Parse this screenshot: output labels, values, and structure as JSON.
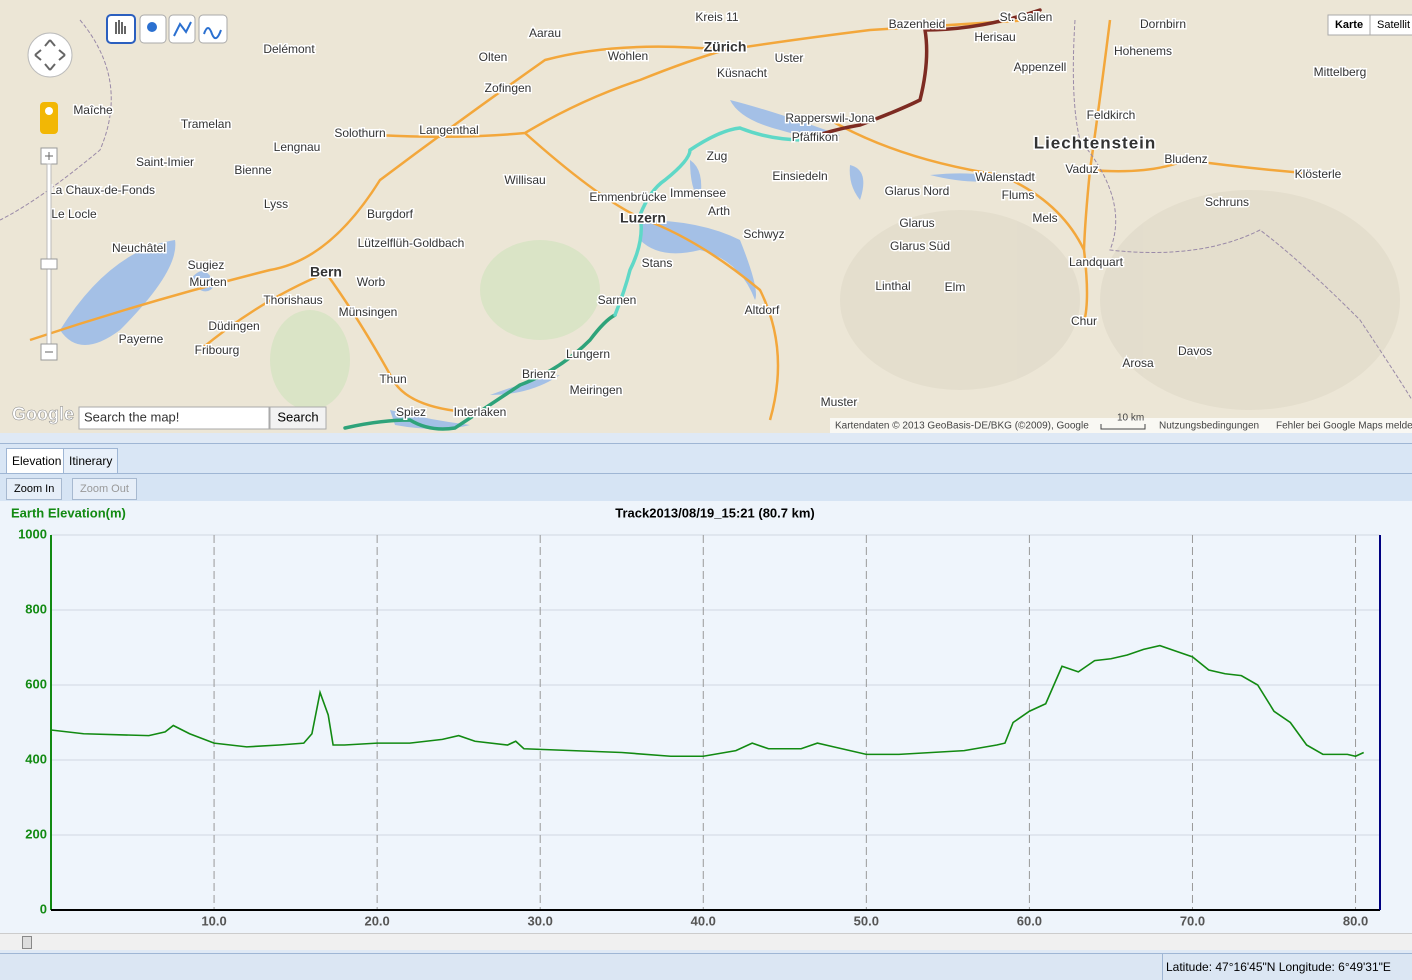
{
  "map": {
    "map_types": [
      "Karte",
      "Satellit"
    ],
    "search_placeholder": "Search the map!",
    "search_button": "Search",
    "logo": "Google",
    "scale": "10 km",
    "attribution": "Kartendaten © 2013 GeoBasis-DE/BKG (©2009), Google",
    "terms": "Nutzungsbedingungen",
    "report": "Fehler bei Google Maps melden",
    "places": [
      "Zürich",
      "Aarau",
      "Olten",
      "Zofingen",
      "Solothurn",
      "Langenthal",
      "Bienne",
      "Bern",
      "Thun",
      "Spiez",
      "Interlaken",
      "Luzern",
      "Zug",
      "Sarnen",
      "Stans",
      "Schwyz",
      "Einsiedeln",
      "Rapperswil-Jona",
      "Pfäffikon",
      "Uster",
      "Küsnacht",
      "Wohlen",
      "Willisau",
      "Burgdorf",
      "Fribourg",
      "Neuchâtel",
      "La Chaux-de-Fonds",
      "Delémont",
      "St. Gallen",
      "Herisau",
      "Appenzell",
      "Liechtenstein",
      "Vaduz",
      "Feldkirch",
      "Chur",
      "Davos",
      "Glarus",
      "Altdorf",
      "Meiringen",
      "Brienz",
      "Lungern",
      "Münsingen",
      "Murten",
      "Payerne",
      "Dornbirn",
      "Bludenz",
      "Landquart",
      "Arosa",
      "Hohenems",
      "Mittelberg",
      "Thorishaus",
      "Worb",
      "Lyss",
      "Maîche",
      "Tramelan",
      "Lengnau",
      "Saint-Imier",
      "Le Locle",
      "Düdingen",
      "Emmenbrücke",
      "Immensee",
      "Arth",
      "Walenstadt",
      "Flums",
      "Mels",
      "Linthal",
      "Elm",
      "Glarus Nord",
      "Glarus Süd",
      "Schruns",
      "Klösterle",
      "Muster",
      "Bazenheid",
      "Kreis 11",
      "Lützelflüh-Goldbach",
      "Sugiez",
      "Mittelberg"
    ]
  },
  "tabs": [
    "Elevation",
    "Itinerary"
  ],
  "buttons": [
    "Zoom In",
    "Zoom Out"
  ],
  "chart_data": {
    "type": "line",
    "title": "Track2013/08/19_15:21 (80.7 km)",
    "y_label": "Earth Elevation(m)",
    "color": "#128a12",
    "x": [
      0,
      2,
      6,
      7,
      7.5,
      8.5,
      10,
      12,
      14,
      15.5,
      16,
      16.5,
      17,
      17.3,
      18,
      20,
      22,
      24,
      25,
      26,
      28,
      28.5,
      29,
      32,
      35,
      38,
      40,
      42,
      43,
      44,
      46,
      47,
      48,
      50,
      52,
      54,
      56,
      58,
      58.5,
      59,
      60,
      61,
      62,
      63,
      64,
      65,
      66,
      67,
      68,
      69,
      70,
      71,
      72,
      73,
      74,
      75,
      76,
      77,
      78,
      79.5,
      80,
      80.5
    ],
    "values": [
      480,
      470,
      465,
      475,
      492,
      470,
      445,
      435,
      440,
      445,
      470,
      580,
      520,
      440,
      440,
      445,
      445,
      455,
      465,
      450,
      440,
      450,
      430,
      425,
      420,
      410,
      410,
      425,
      445,
      430,
      430,
      445,
      435,
      415,
      415,
      420,
      425,
      440,
      445,
      500,
      530,
      550,
      650,
      635,
      665,
      670,
      680,
      695,
      705,
      690,
      675,
      640,
      630,
      625,
      600,
      530,
      500,
      440,
      415,
      415,
      410,
      420
    ],
    "xlim": [
      0,
      81.5
    ],
    "ylim": [
      0,
      1000
    ],
    "xticks": [
      {
        "value": 10,
        "label": "10.0"
      },
      {
        "value": 20,
        "label": "20.0"
      },
      {
        "value": 30,
        "label": "30.0"
      },
      {
        "value": 40,
        "label": "40.0"
      },
      {
        "value": 50,
        "label": "50.0"
      },
      {
        "value": 60,
        "label": "60.0"
      },
      {
        "value": 70,
        "label": "70.0"
      },
      {
        "value": 80,
        "label": "80.0"
      }
    ],
    "yticks": [
      0,
      200,
      400,
      600,
      800,
      1000
    ],
    "grid": true
  },
  "status": {
    "latitude": "Latitude: 47°16'45\"N",
    "longitude": "Longitude: 6°49'31\"E"
  }
}
